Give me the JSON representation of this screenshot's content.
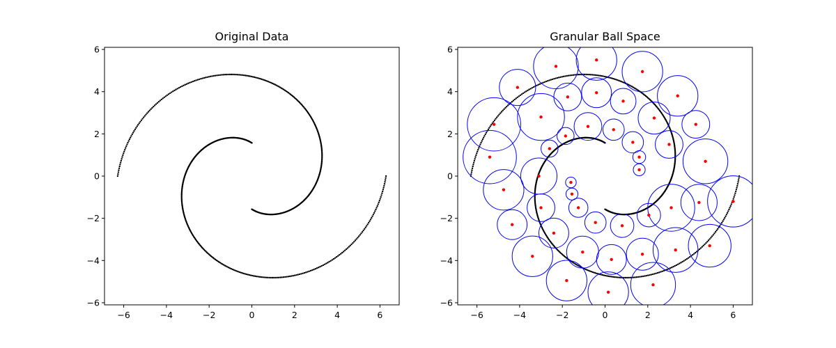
{
  "chart_data": [
    {
      "type": "scatter",
      "title": "Original Data",
      "xlim": [
        -6.9,
        6.9
      ],
      "ylim": [
        -6.1,
        6.1
      ],
      "xticks": [
        -6,
        -4,
        -2,
        0,
        2,
        4,
        6
      ],
      "yticks": [
        -6,
        -4,
        -2,
        0,
        2,
        4,
        6
      ],
      "xtick_labels": [
        "−6",
        "−4",
        "−2",
        "0",
        "2",
        "4",
        "6"
      ],
      "ytick_labels": [
        "−6",
        "−4",
        "−2",
        "0",
        "2",
        "4",
        "6"
      ],
      "series": [
        {
          "kind": "double-spiral-points",
          "color": "#000000",
          "arm_1": {
            "start": [
              1.57,
              0.0
            ],
            "end": [
              -6.28,
              0.0
            ],
            "theta_range_rad": [
              1.5708,
              6.2832
            ],
            "points": 320
          },
          "arm_2": {
            "start": [
              -1.57,
              0.0
            ],
            "end": [
              6.28,
              0.0
            ],
            "theta_range_rad": [
              1.5708,
              6.2832
            ],
            "points": 320
          }
        }
      ],
      "grid": false
    },
    {
      "type": "scatter",
      "title": "Granular Ball Space",
      "xlim": [
        -6.9,
        6.9
      ],
      "ylim": [
        -6.1,
        6.1
      ],
      "xticks": [
        -6,
        -4,
        -2,
        0,
        2,
        4,
        6
      ],
      "yticks": [
        -6,
        -4,
        -2,
        0,
        2,
        4,
        6
      ],
      "xtick_labels": [
        "−6",
        "−4",
        "−2",
        "0",
        "2",
        "4",
        "6"
      ],
      "ytick_labels": [
        "−6",
        "−4",
        "−2",
        "0",
        "2",
        "4",
        "6"
      ],
      "series": [
        {
          "kind": "double-spiral-points",
          "color": "#000000",
          "arm_1": {
            "start": [
              1.57,
              0.0
            ],
            "end": [
              -6.28,
              0.0
            ],
            "theta_range_rad": [
              1.5708,
              6.2832
            ],
            "points": 320
          },
          "arm_2": {
            "start": [
              -1.57,
              0.0
            ],
            "end": [
              6.28,
              0.0
            ],
            "theta_range_rad": [
              1.5708,
              6.2832
            ],
            "points": 320
          }
        }
      ],
      "balls_color": "#0000ff",
      "center_color": "#ff0000",
      "balls": [
        [
          -0.4,
          5.5,
          0.95
        ],
        [
          1.75,
          4.95,
          0.95
        ],
        [
          -2.3,
          5.2,
          1.05
        ],
        [
          3.4,
          3.8,
          0.95
        ],
        [
          -4.1,
          4.2,
          0.85
        ],
        [
          -5.2,
          2.45,
          1.25
        ],
        [
          -5.4,
          0.9,
          1.25
        ],
        [
          -3.0,
          2.8,
          1.1
        ],
        [
          -1.75,
          3.75,
          0.65
        ],
        [
          -0.4,
          3.95,
          0.7
        ],
        [
          0.85,
          3.55,
          0.6
        ],
        [
          2.3,
          2.75,
          0.75
        ],
        [
          4.25,
          2.45,
          0.65
        ],
        [
          -4.75,
          -0.65,
          0.95
        ],
        [
          -3.1,
          0.0,
          0.85
        ],
        [
          -2.6,
          1.3,
          0.4
        ],
        [
          -1.85,
          1.9,
          0.4
        ],
        [
          -0.8,
          2.35,
          0.65
        ],
        [
          0.4,
          2.2,
          0.5
        ],
        [
          1.3,
          1.6,
          0.5
        ],
        [
          3.0,
          1.5,
          0.65
        ],
        [
          1.6,
          0.9,
          0.3
        ],
        [
          1.6,
          0.3,
          0.28
        ],
        [
          4.7,
          0.7,
          1.05
        ],
        [
          -1.6,
          -0.3,
          0.25
        ],
        [
          -1.55,
          -0.85,
          0.28
        ],
        [
          -1.25,
          -1.5,
          0.45
        ],
        [
          -0.45,
          -2.2,
          0.5
        ],
        [
          0.8,
          -2.35,
          0.55
        ],
        [
          2.05,
          -1.85,
          0.55
        ],
        [
          3.1,
          -1.5,
          1.1
        ],
        [
          4.4,
          -1.25,
          0.85
        ],
        [
          6.0,
          -1.2,
          1.2
        ],
        [
          -3.0,
          -1.5,
          0.65
        ],
        [
          -4.35,
          -2.3,
          0.7
        ],
        [
          -2.4,
          -2.7,
          0.7
        ],
        [
          -1.05,
          -3.6,
          0.75
        ],
        [
          0.3,
          -3.95,
          0.7
        ],
        [
          1.75,
          -3.7,
          0.75
        ],
        [
          3.3,
          -3.5,
          1.05
        ],
        [
          4.9,
          -3.3,
          1.0
        ],
        [
          -3.4,
          -3.8,
          0.95
        ],
        [
          -1.8,
          -4.95,
          0.95
        ],
        [
          0.15,
          -5.5,
          0.95
        ],
        [
          2.25,
          -5.15,
          1.05
        ]
      ],
      "grid": false
    }
  ]
}
